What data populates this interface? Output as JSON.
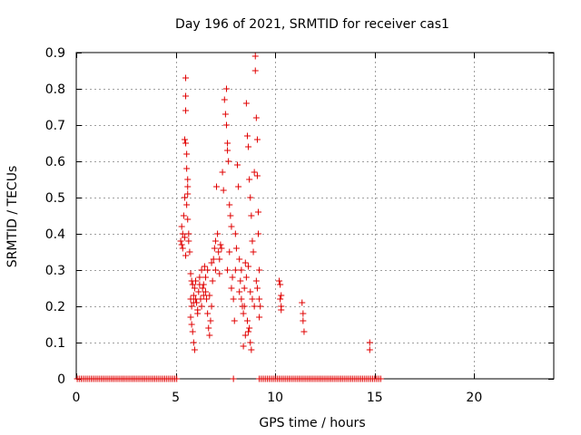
{
  "chart_data": {
    "type": "scatter",
    "title": "Day 196 of 2021, SRMTID for receiver cas1",
    "xlabel": "GPS time / hours",
    "ylabel": "SRMTID / TECUs",
    "xlim": [
      0,
      24
    ],
    "ylim": [
      0,
      0.9
    ],
    "xticks": [
      0,
      5,
      10,
      15,
      20
    ],
    "yticks": [
      0,
      0.1,
      0.2,
      0.3,
      0.4,
      0.5,
      0.6,
      0.7,
      0.8,
      0.9
    ],
    "xtick_labels": [
      "0",
      "5",
      "10",
      "15",
      "20"
    ],
    "ytick_labels": [
      "0",
      "0.1",
      "0.2",
      "0.3",
      "0.4",
      "0.5",
      "0.6",
      "0.7",
      "0.8",
      "0.9"
    ],
    "grid": true,
    "marker": "+",
    "color": "#e00000",
    "series": [
      {
        "name": "SRMTID",
        "points": [
          [
            0.05,
            0
          ],
          [
            0.15,
            0
          ],
          [
            0.25,
            0
          ],
          [
            0.35,
            0
          ],
          [
            0.45,
            0
          ],
          [
            0.55,
            0
          ],
          [
            0.65,
            0
          ],
          [
            0.75,
            0
          ],
          [
            0.85,
            0
          ],
          [
            0.95,
            0
          ],
          [
            1.05,
            0
          ],
          [
            1.15,
            0
          ],
          [
            1.25,
            0
          ],
          [
            1.35,
            0
          ],
          [
            1.45,
            0
          ],
          [
            1.55,
            0
          ],
          [
            1.65,
            0
          ],
          [
            1.75,
            0
          ],
          [
            1.85,
            0
          ],
          [
            1.95,
            0
          ],
          [
            2.05,
            0
          ],
          [
            2.15,
            0
          ],
          [
            2.25,
            0
          ],
          [
            2.35,
            0
          ],
          [
            2.45,
            0
          ],
          [
            2.55,
            0
          ],
          [
            2.65,
            0
          ],
          [
            2.75,
            0
          ],
          [
            2.85,
            0
          ],
          [
            2.95,
            0
          ],
          [
            3.05,
            0
          ],
          [
            3.15,
            0
          ],
          [
            3.25,
            0
          ],
          [
            3.35,
            0
          ],
          [
            3.45,
            0
          ],
          [
            3.55,
            0
          ],
          [
            3.65,
            0
          ],
          [
            3.75,
            0
          ],
          [
            3.85,
            0
          ],
          [
            3.95,
            0
          ],
          [
            4.05,
            0
          ],
          [
            4.15,
            0
          ],
          [
            4.25,
            0
          ],
          [
            4.35,
            0
          ],
          [
            4.45,
            0
          ],
          [
            4.55,
            0
          ],
          [
            4.65,
            0
          ],
          [
            4.75,
            0
          ],
          [
            4.85,
            0
          ],
          [
            4.95,
            0
          ],
          [
            5.05,
            0
          ],
          [
            7.9,
            0
          ],
          [
            9.2,
            0
          ],
          [
            9.3,
            0
          ],
          [
            9.4,
            0
          ],
          [
            9.5,
            0
          ],
          [
            9.6,
            0
          ],
          [
            9.7,
            0
          ],
          [
            9.8,
            0
          ],
          [
            9.9,
            0
          ],
          [
            10.0,
            0
          ],
          [
            10.1,
            0
          ],
          [
            10.2,
            0
          ],
          [
            10.3,
            0
          ],
          [
            10.4,
            0
          ],
          [
            10.5,
            0
          ],
          [
            10.6,
            0
          ],
          [
            10.7,
            0
          ],
          [
            10.8,
            0
          ],
          [
            10.9,
            0
          ],
          [
            11.0,
            0
          ],
          [
            11.1,
            0
          ],
          [
            11.2,
            0
          ],
          [
            11.3,
            0
          ],
          [
            11.4,
            0
          ],
          [
            11.5,
            0
          ],
          [
            11.6,
            0
          ],
          [
            11.7,
            0
          ],
          [
            11.8,
            0
          ],
          [
            11.9,
            0
          ],
          [
            12.0,
            0
          ],
          [
            12.1,
            0
          ],
          [
            12.2,
            0
          ],
          [
            12.3,
            0
          ],
          [
            12.4,
            0
          ],
          [
            12.5,
            0
          ],
          [
            12.6,
            0
          ],
          [
            12.7,
            0
          ],
          [
            12.8,
            0
          ],
          [
            12.9,
            0
          ],
          [
            13.0,
            0
          ],
          [
            13.1,
            0
          ],
          [
            13.2,
            0
          ],
          [
            13.3,
            0
          ],
          [
            13.4,
            0
          ],
          [
            13.5,
            0
          ],
          [
            13.6,
            0
          ],
          [
            13.7,
            0
          ],
          [
            13.8,
            0
          ],
          [
            13.9,
            0
          ],
          [
            14.0,
            0
          ],
          [
            14.1,
            0
          ],
          [
            14.2,
            0
          ],
          [
            14.3,
            0
          ],
          [
            14.4,
            0
          ],
          [
            14.5,
            0
          ],
          [
            14.6,
            0
          ],
          [
            14.7,
            0
          ],
          [
            14.8,
            0
          ],
          [
            14.9,
            0
          ],
          [
            15.0,
            0
          ],
          [
            15.1,
            0
          ],
          [
            15.2,
            0
          ],
          [
            15.3,
            0
          ],
          [
            5.25,
            0.38
          ],
          [
            5.3,
            0.42
          ],
          [
            5.35,
            0.36
          ],
          [
            5.4,
            0.45
          ],
          [
            5.45,
            0.5
          ],
          [
            5.5,
            0.83
          ],
          [
            5.5,
            0.78
          ],
          [
            5.5,
            0.74
          ],
          [
            5.45,
            0.66
          ],
          [
            5.5,
            0.65
          ],
          [
            5.55,
            0.62
          ],
          [
            5.55,
            0.58
          ],
          [
            5.6,
            0.55
          ],
          [
            5.6,
            0.53
          ],
          [
            5.6,
            0.51
          ],
          [
            5.55,
            0.48
          ],
          [
            5.6,
            0.44
          ],
          [
            5.65,
            0.4
          ],
          [
            5.65,
            0.38
          ],
          [
            5.7,
            0.35
          ],
          [
            5.5,
            0.34
          ],
          [
            5.45,
            0.39
          ],
          [
            5.35,
            0.4
          ],
          [
            5.3,
            0.37
          ],
          [
            5.75,
            0.29
          ],
          [
            5.8,
            0.27
          ],
          [
            5.75,
            0.22
          ],
          [
            5.8,
            0.2
          ],
          [
            5.75,
            0.17
          ],
          [
            5.8,
            0.15
          ],
          [
            5.85,
            0.13
          ],
          [
            5.9,
            0.1
          ],
          [
            5.95,
            0.08
          ],
          [
            5.9,
            0.23
          ],
          [
            5.95,
            0.25
          ],
          [
            6.0,
            0.27
          ],
          [
            6.05,
            0.21
          ],
          [
            6.1,
            0.19
          ],
          [
            6.15,
            0.24
          ],
          [
            6.2,
            0.26
          ],
          [
            6.25,
            0.22
          ],
          [
            6.3,
            0.2
          ],
          [
            6.35,
            0.25
          ],
          [
            6.4,
            0.23
          ],
          [
            6.45,
            0.31
          ],
          [
            6.5,
            0.28
          ],
          [
            6.55,
            0.22
          ],
          [
            6.6,
            0.18
          ],
          [
            6.65,
            0.14
          ],
          [
            6.7,
            0.12
          ],
          [
            6.75,
            0.16
          ],
          [
            6.8,
            0.2
          ],
          [
            6.85,
            0.27
          ],
          [
            6.9,
            0.33
          ],
          [
            6.95,
            0.36
          ],
          [
            7.0,
            0.38
          ],
          [
            7.05,
            0.53
          ],
          [
            7.1,
            0.4
          ],
          [
            7.15,
            0.35
          ],
          [
            7.2,
            0.33
          ],
          [
            7.25,
            0.37
          ],
          [
            7.3,
            0.36
          ],
          [
            7.35,
            0.57
          ],
          [
            7.4,
            0.52
          ],
          [
            7.45,
            0.77
          ],
          [
            7.5,
            0.73
          ],
          [
            7.55,
            0.8
          ],
          [
            7.55,
            0.7
          ],
          [
            7.6,
            0.63
          ],
          [
            7.6,
            0.65
          ],
          [
            7.65,
            0.6
          ],
          [
            7.7,
            0.48
          ],
          [
            7.75,
            0.45
          ],
          [
            7.8,
            0.42
          ],
          [
            7.85,
            0.28
          ],
          [
            7.9,
            0.22
          ],
          [
            7.95,
            0.16
          ],
          [
            8.0,
            0.4
          ],
          [
            8.05,
            0.36
          ],
          [
            8.1,
            0.59
          ],
          [
            8.15,
            0.53
          ],
          [
            8.2,
            0.33
          ],
          [
            8.25,
            0.27
          ],
          [
            8.3,
            0.3
          ],
          [
            8.35,
            0.2
          ],
          [
            8.4,
            0.18
          ],
          [
            8.45,
            0.25
          ],
          [
            8.5,
            0.32
          ],
          [
            8.55,
            0.76
          ],
          [
            8.6,
            0.67
          ],
          [
            8.65,
            0.64
          ],
          [
            8.7,
            0.55
          ],
          [
            8.75,
            0.5
          ],
          [
            8.8,
            0.45
          ],
          [
            8.85,
            0.38
          ],
          [
            8.9,
            0.35
          ],
          [
            8.95,
            0.57
          ],
          [
            9.0,
            0.89
          ],
          [
            9.0,
            0.85
          ],
          [
            9.05,
            0.72
          ],
          [
            9.1,
            0.66
          ],
          [
            9.1,
            0.56
          ],
          [
            9.15,
            0.46
          ],
          [
            9.15,
            0.4
          ],
          [
            9.2,
            0.3
          ],
          [
            9.2,
            0.22
          ],
          [
            9.25,
            0.2
          ],
          [
            9.2,
            0.17
          ],
          [
            8.7,
            0.14
          ],
          [
            8.75,
            0.1
          ],
          [
            8.8,
            0.08
          ],
          [
            8.65,
            0.13
          ],
          [
            8.6,
            0.16
          ],
          [
            8.5,
            0.12
          ],
          [
            8.4,
            0.09
          ],
          [
            6.4,
            0.26
          ],
          [
            6.6,
            0.3
          ],
          [
            6.8,
            0.32
          ],
          [
            7.0,
            0.3
          ],
          [
            7.2,
            0.29
          ],
          [
            6.3,
            0.3
          ],
          [
            6.2,
            0.28
          ],
          [
            6.1,
            0.18
          ],
          [
            6.0,
            0.22
          ],
          [
            5.9,
            0.21
          ],
          [
            5.85,
            0.26
          ],
          [
            6.5,
            0.24
          ],
          [
            6.7,
            0.23
          ],
          [
            7.6,
            0.3
          ],
          [
            7.7,
            0.35
          ],
          [
            7.8,
            0.25
          ],
          [
            8.0,
            0.3
          ],
          [
            8.2,
            0.24
          ],
          [
            8.3,
            0.22
          ],
          [
            8.45,
            0.2
          ],
          [
            8.55,
            0.28
          ],
          [
            8.65,
            0.31
          ],
          [
            8.75,
            0.24
          ],
          [
            8.85,
            0.22
          ],
          [
            8.95,
            0.2
          ],
          [
            9.05,
            0.27
          ],
          [
            9.1,
            0.25
          ],
          [
            10.2,
            0.27
          ],
          [
            10.25,
            0.26
          ],
          [
            10.3,
            0.23
          ],
          [
            10.25,
            0.22
          ],
          [
            10.3,
            0.2
          ],
          [
            10.3,
            0.19
          ],
          [
            11.35,
            0.21
          ],
          [
            11.4,
            0.18
          ],
          [
            11.4,
            0.16
          ],
          [
            11.45,
            0.13
          ],
          [
            14.75,
            0.1
          ],
          [
            14.75,
            0.08
          ]
        ]
      }
    ]
  }
}
